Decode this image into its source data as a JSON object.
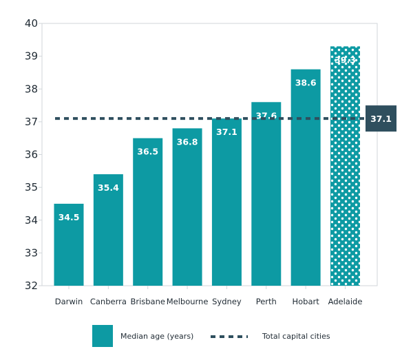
{
  "chart_data": {
    "type": "bar",
    "categories": [
      "Darwin",
      "Canberra",
      "Brisbane",
      "Melbourne",
      "Sydney",
      "Perth",
      "Hobart",
      "Adelaide"
    ],
    "series": [
      {
        "name": "Median age (years)",
        "values": [
          34.5,
          35.4,
          36.5,
          36.8,
          37.1,
          37.6,
          38.6,
          39.3
        ]
      }
    ],
    "data_labels": [
      "34.5",
      "35.4",
      "36.5",
      "36.8",
      "37.1",
      "37.6",
      "38.6",
      "39.3"
    ],
    "reference_line": {
      "name": "Total capital cities",
      "value": 37.1,
      "label": "37.1",
      "style": "dashed"
    },
    "highlight": {
      "category": "Adelaide",
      "pattern": "dotted"
    },
    "yticks": [
      "32",
      "33",
      "34",
      "35",
      "36",
      "37",
      "38",
      "39",
      "40"
    ],
    "ylim": [
      32,
      40
    ],
    "grid": false,
    "legend_position": "bottom",
    "colors": {
      "bar": "#0d9aa3",
      "reference": "#2f4f5e",
      "axis": "#d0d6da",
      "text": "#1f2a33"
    }
  },
  "legend": {
    "bar_label": "Median age (years)",
    "line_label": "Total capital cities"
  }
}
